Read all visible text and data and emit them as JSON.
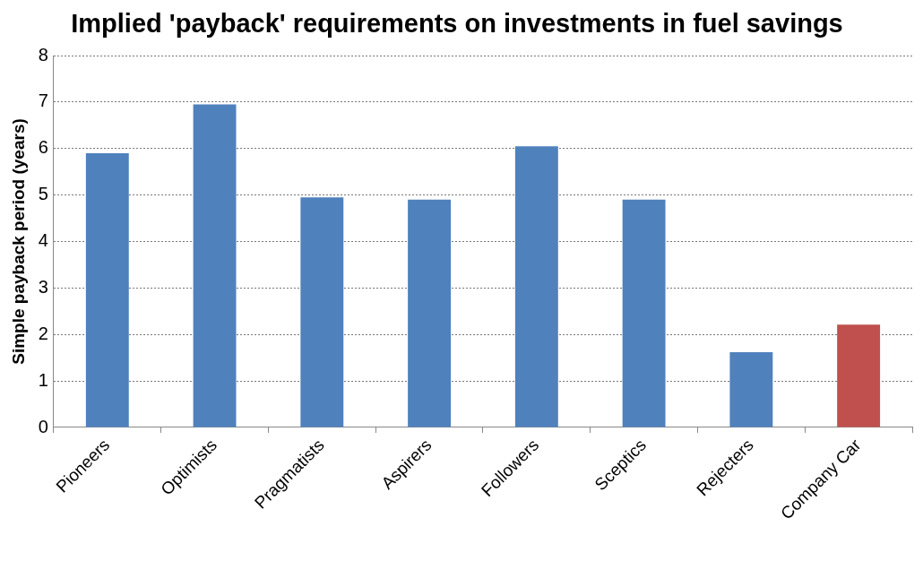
{
  "chart_data": {
    "type": "bar",
    "title": "Implied 'payback' requirements  on investments in fuel savings",
    "ylabel": "Simple payback period (years)",
    "categories": [
      "Pioneers",
      "Optimists",
      "Pragmatists",
      "Aspirers",
      "Followers",
      "Sceptics",
      "Rejecters",
      "Company Car"
    ],
    "values": [
      5.9,
      6.95,
      4.95,
      4.9,
      6.05,
      4.9,
      1.62,
      2.21
    ],
    "colors": [
      "#4f81bd",
      "#4f81bd",
      "#4f81bd",
      "#4f81bd",
      "#4f81bd",
      "#4f81bd",
      "#4f81bd",
      "#c0504d"
    ],
    "ylim": [
      0,
      8
    ],
    "yticks": [
      0,
      1,
      2,
      3,
      4,
      5,
      6,
      7,
      8
    ],
    "grid": "y",
    "legend": false
  }
}
